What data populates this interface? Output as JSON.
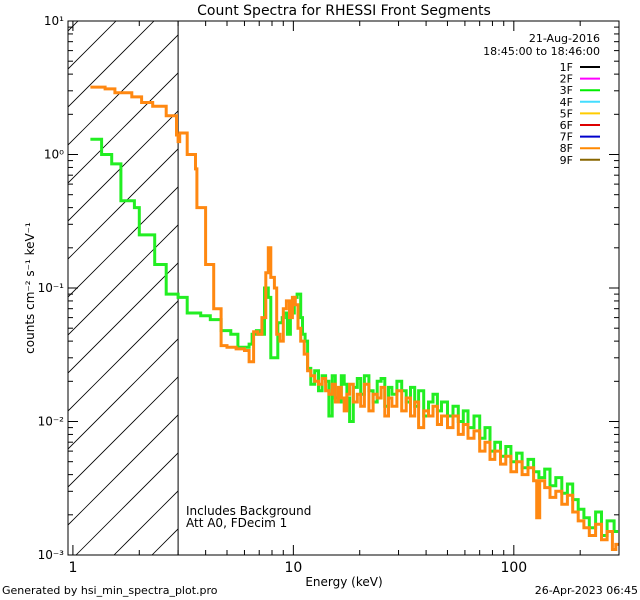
{
  "chart_data": {
    "type": "line",
    "title": "Count Spectra for RHESSI Front Segments",
    "xlabel": "Energy (keV)",
    "ylabel": "counts cm⁻² s⁻¹ keV⁻¹",
    "xscale": "log",
    "yscale": "log",
    "xlim": [
      0.95,
      300
    ],
    "ylim": [
      0.001,
      10
    ],
    "x_tick_labels": [
      "1",
      "10",
      "100"
    ],
    "y_tick_labels": [
      "10⁻³",
      "10⁻²",
      "10⁻¹",
      "10⁰",
      "10¹"
    ],
    "hatched_region": [
      0.95,
      3.0
    ],
    "legend": {
      "placement": "top-right",
      "date": "21-Aug-2016",
      "time_range": "18:45:00 to 18:46:00",
      "entries": [
        {
          "label": "1F",
          "color": "#000000"
        },
        {
          "label": "2F",
          "color": "#ff00ff"
        },
        {
          "label": "3F",
          "color": "#00ee00"
        },
        {
          "label": "4F",
          "color": "#44ddff"
        },
        {
          "label": "5F",
          "color": "#ffcc00"
        },
        {
          "label": "6F",
          "color": "#dd0000"
        },
        {
          "label": "7F",
          "color": "#0000cc"
        },
        {
          "label": "8F",
          "color": "#ff8800"
        },
        {
          "label": "9F",
          "color": "#886600"
        }
      ]
    },
    "annotations": [
      "Includes Background",
      "Att A0, FDecim 1"
    ],
    "series": [
      {
        "name": "3F",
        "color": "#22ee22",
        "points": [
          [
            1.2,
            1.3
          ],
          [
            1.3,
            1.3
          ],
          [
            1.35,
            1.0
          ],
          [
            1.5,
            0.85
          ],
          [
            1.65,
            0.45
          ],
          [
            1.9,
            0.4
          ],
          [
            2.0,
            0.25
          ],
          [
            2.3,
            0.25
          ],
          [
            2.35,
            0.15
          ],
          [
            2.6,
            0.15
          ],
          [
            2.65,
            0.09
          ],
          [
            3.0,
            0.085
          ],
          [
            3.3,
            0.065
          ],
          [
            3.8,
            0.062
          ],
          [
            4.2,
            0.058
          ],
          [
            4.6,
            0.058
          ],
          [
            4.7,
            0.048
          ],
          [
            5.2,
            0.045
          ],
          [
            5.6,
            0.036
          ],
          [
            6.3,
            0.038
          ],
          [
            6.5,
            0.045
          ],
          [
            6.8,
            0.048
          ],
          [
            7.0,
            0.045
          ],
          [
            7.4,
            0.1
          ],
          [
            7.7,
            0.085
          ],
          [
            7.9,
            0.03
          ],
          [
            8.2,
            0.03
          ],
          [
            8.5,
            0.055
          ],
          [
            8.9,
            0.06
          ],
          [
            9.1,
            0.065
          ],
          [
            9.4,
            0.045
          ],
          [
            9.7,
            0.065
          ],
          [
            10.1,
            0.085
          ],
          [
            10.4,
            0.09
          ],
          [
            10.8,
            0.06
          ],
          [
            11.0,
            0.045
          ],
          [
            11.3,
            0.04
          ],
          [
            11.6,
            0.025
          ],
          [
            12.0,
            0.019
          ],
          [
            12.5,
            0.024
          ],
          [
            13.0,
            0.017
          ],
          [
            13.5,
            0.022
          ],
          [
            14.0,
            0.02
          ],
          [
            14.5,
            0.011
          ],
          [
            15.0,
            0.022
          ],
          [
            15.5,
            0.015
          ],
          [
            16.0,
            0.014
          ],
          [
            16.5,
            0.022
          ],
          [
            17.0,
            0.019
          ],
          [
            17.5,
            0.015
          ],
          [
            18.0,
            0.01
          ],
          [
            18.7,
            0.018
          ],
          [
            19.5,
            0.021
          ],
          [
            20.2,
            0.016
          ],
          [
            21.0,
            0.022
          ],
          [
            22.0,
            0.017
          ],
          [
            23.0,
            0.014
          ],
          [
            24.0,
            0.02
          ],
          [
            25.0,
            0.021
          ],
          [
            26.0,
            0.013
          ],
          [
            27.0,
            0.018
          ],
          [
            28.0,
            0.016
          ],
          [
            29.5,
            0.02
          ],
          [
            31.0,
            0.017
          ],
          [
            32.5,
            0.014
          ],
          [
            34.0,
            0.018
          ],
          [
            35.5,
            0.013
          ],
          [
            37.0,
            0.017
          ],
          [
            39.0,
            0.011
          ],
          [
            41.0,
            0.014
          ],
          [
            43.0,
            0.016
          ],
          [
            45.0,
            0.012
          ],
          [
            47.0,
            0.014
          ],
          [
            50.0,
            0.011
          ],
          [
            53.0,
            0.013
          ],
          [
            56.0,
            0.01
          ],
          [
            59.0,
            0.012
          ],
          [
            62.0,
            0.009
          ],
          [
            66.0,
            0.011
          ],
          [
            70.0,
            0.0075
          ],
          [
            74.0,
            0.009
          ],
          [
            78.0,
            0.006
          ],
          [
            82.0,
            0.007
          ],
          [
            87.0,
            0.0055
          ],
          [
            92.0,
            0.0065
          ],
          [
            97.0,
            0.005
          ],
          [
            103.0,
            0.0058
          ],
          [
            109.0,
            0.0045
          ],
          [
            116.0,
            0.0052
          ],
          [
            123.0,
            0.0042
          ],
          [
            130.0,
            0.0038
          ],
          [
            138.0,
            0.0044
          ],
          [
            146.0,
            0.0033
          ],
          [
            155.0,
            0.0038
          ],
          [
            165.0,
            0.0029
          ],
          [
            175.0,
            0.0034
          ],
          [
            185.0,
            0.0026
          ],
          [
            196.0,
            0.0022
          ],
          [
            208.0,
            0.0019
          ],
          [
            220.0,
            0.0016
          ],
          [
            235.0,
            0.0021
          ],
          [
            250.0,
            0.0014
          ],
          [
            265.0,
            0.0018
          ],
          [
            285.0,
            0.0015
          ]
        ]
      },
      {
        "name": "8F",
        "color": "#ff8811",
        "points": [
          [
            1.2,
            3.2
          ],
          [
            1.4,
            3.1
          ],
          [
            1.5,
            3.1
          ],
          [
            1.55,
            2.9
          ],
          [
            1.8,
            2.9
          ],
          [
            1.85,
            2.7
          ],
          [
            2.0,
            2.7
          ],
          [
            2.05,
            2.45
          ],
          [
            2.25,
            2.45
          ],
          [
            2.3,
            2.3
          ],
          [
            2.6,
            2.3
          ],
          [
            2.65,
            1.95
          ],
          [
            2.85,
            1.95
          ],
          [
            2.95,
            1.4
          ],
          [
            3.0,
            1.25
          ],
          [
            3.05,
            1.45
          ],
          [
            3.3,
            1.0
          ],
          [
            3.6,
            0.78
          ],
          [
            3.65,
            0.4
          ],
          [
            3.95,
            0.4
          ],
          [
            4.0,
            0.15
          ],
          [
            4.3,
            0.15
          ],
          [
            4.35,
            0.07
          ],
          [
            4.6,
            0.07
          ],
          [
            4.7,
            0.037
          ],
          [
            5.0,
            0.036
          ],
          [
            5.5,
            0.035
          ],
          [
            6.0,
            0.034
          ],
          [
            6.3,
            0.028
          ],
          [
            6.6,
            0.047
          ],
          [
            6.9,
            0.045
          ],
          [
            7.2,
            0.06
          ],
          [
            7.5,
            0.13
          ],
          [
            7.7,
            0.2
          ],
          [
            7.9,
            0.12
          ],
          [
            8.2,
            0.1
          ],
          [
            8.4,
            0.045
          ],
          [
            8.7,
            0.04
          ],
          [
            9.0,
            0.07
          ],
          [
            9.3,
            0.08
          ],
          [
            9.6,
            0.06
          ],
          [
            9.9,
            0.085
          ],
          [
            10.2,
            0.075
          ],
          [
            10.5,
            0.05
          ],
          [
            10.8,
            0.04
          ],
          [
            11.2,
            0.032
          ],
          [
            11.6,
            0.024
          ],
          [
            12.0,
            0.022
          ],
          [
            12.5,
            0.02
          ],
          [
            13.0,
            0.019
          ],
          [
            13.5,
            0.021
          ],
          [
            14.0,
            0.017
          ],
          [
            14.5,
            0.016
          ],
          [
            15.0,
            0.019
          ],
          [
            15.5,
            0.014
          ],
          [
            16.0,
            0.018
          ],
          [
            16.5,
            0.015
          ],
          [
            17.0,
            0.012
          ],
          [
            17.5,
            0.016
          ],
          [
            18.0,
            0.019
          ],
          [
            18.7,
            0.014
          ],
          [
            19.5,
            0.016
          ],
          [
            20.2,
            0.013
          ],
          [
            21.0,
            0.019
          ],
          [
            22.0,
            0.012
          ],
          [
            23.0,
            0.016
          ],
          [
            24.0,
            0.015
          ],
          [
            25.0,
            0.018
          ],
          [
            26.0,
            0.011
          ],
          [
            27.0,
            0.015
          ],
          [
            28.0,
            0.013
          ],
          [
            29.5,
            0.017
          ],
          [
            31.0,
            0.012
          ],
          [
            32.5,
            0.015
          ],
          [
            34.0,
            0.011
          ],
          [
            35.5,
            0.014
          ],
          [
            37.0,
            0.009
          ],
          [
            39.0,
            0.012
          ],
          [
            41.0,
            0.011
          ],
          [
            43.0,
            0.013
          ],
          [
            45.0,
            0.0095
          ],
          [
            47.0,
            0.011
          ],
          [
            50.0,
            0.009
          ],
          [
            53.0,
            0.011
          ],
          [
            56.0,
            0.008
          ],
          [
            59.0,
            0.0095
          ],
          [
            62.0,
            0.0075
          ],
          [
            66.0,
            0.0085
          ],
          [
            70.0,
            0.006
          ],
          [
            74.0,
            0.007
          ],
          [
            78.0,
            0.0052
          ],
          [
            82.0,
            0.006
          ],
          [
            87.0,
            0.0048
          ],
          [
            92.0,
            0.0055
          ],
          [
            97.0,
            0.0042
          ],
          [
            103.0,
            0.005
          ],
          [
            109.0,
            0.004
          ],
          [
            116.0,
            0.0045
          ],
          [
            123.0,
            0.0036
          ],
          [
            127.0,
            0.0019
          ],
          [
            131.0,
            0.0036
          ],
          [
            138.0,
            0.0032
          ],
          [
            146.0,
            0.0027
          ],
          [
            155.0,
            0.003
          ],
          [
            165.0,
            0.0024
          ],
          [
            175.0,
            0.0028
          ],
          [
            185.0,
            0.0021
          ],
          [
            196.0,
            0.0018
          ],
          [
            208.0,
            0.0016
          ],
          [
            220.0,
            0.0014
          ],
          [
            235.0,
            0.0017
          ],
          [
            250.0,
            0.0013
          ],
          [
            265.0,
            0.0015
          ],
          [
            280.0,
            0.0011
          ],
          [
            290.0,
            0.0012
          ]
        ]
      }
    ]
  },
  "footer": {
    "generated_by": "Generated by hsi_min_spectra_plot.pro",
    "timestamp": "26-Apr-2023 06:45"
  }
}
